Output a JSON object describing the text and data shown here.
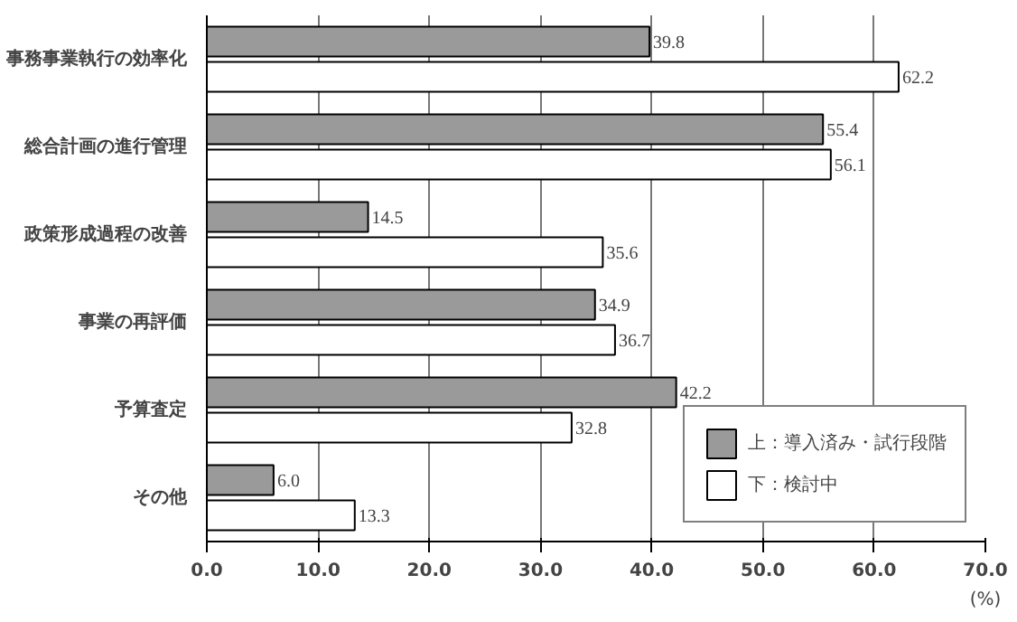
{
  "chart_data": {
    "type": "bar",
    "orientation": "horizontal",
    "categories": [
      "事務事業執行の効率化",
      "総合計画の進行管理",
      "政策形成過程の改善",
      "事業の再評価",
      "予算査定",
      "その他"
    ],
    "series": [
      {
        "name": "上：導入済み・試行段階",
        "color": "#9a9a9a",
        "values": [
          39.8,
          55.4,
          14.5,
          34.9,
          42.2,
          6.0
        ],
        "value_labels": [
          "39.8",
          "55.4",
          "14.5",
          "34.9",
          "42.2",
          "6.0"
        ]
      },
      {
        "name": "下：検討中",
        "color": "#ffffff",
        "values": [
          62.2,
          56.1,
          35.6,
          36.7,
          32.8,
          13.3
        ],
        "value_labels": [
          "62.2",
          "56.1",
          "35.6",
          "36.7",
          "32.8",
          "13.3"
        ]
      }
    ],
    "xlim": [
      0,
      70
    ],
    "xticks": [
      {
        "value": 0,
        "label": "0.0"
      },
      {
        "value": 10,
        "label": "10.0"
      },
      {
        "value": 20,
        "label": "20.0"
      },
      {
        "value": 30,
        "label": "30.0"
      },
      {
        "value": 40,
        "label": "40.0"
      },
      {
        "value": 50,
        "label": "50.0"
      },
      {
        "value": 60,
        "label": "60.0"
      },
      {
        "value": 70,
        "label": "70.0"
      }
    ],
    "xlabel": "(%)",
    "grid": "x",
    "legend": "bottom right"
  }
}
